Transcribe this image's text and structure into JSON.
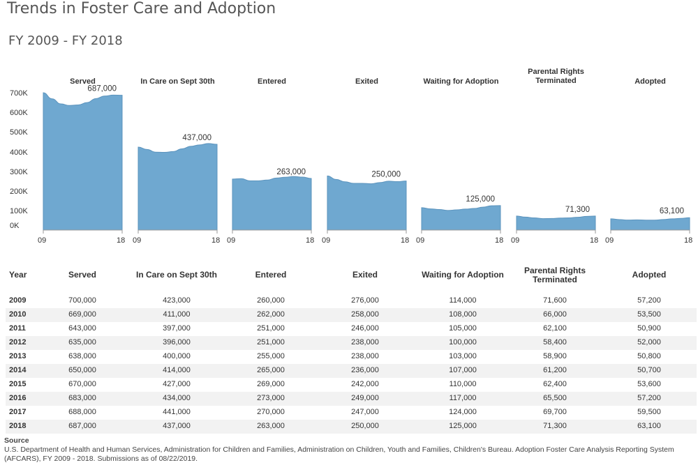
{
  "title": "Trends in Foster Care and Adoption",
  "subtitle": "FY 2009 - FY 2018",
  "chart_data": {
    "type": "area",
    "x_tick_labels": [
      "09",
      "18"
    ],
    "y_tick_labels": [
      "700K",
      "600K",
      "500K",
      "400K",
      "300K",
      "200K",
      "100K",
      "0K"
    ],
    "ylim": [
      0,
      700000
    ],
    "color": "#6fa8d0",
    "x": [
      2009,
      2010,
      2011,
      2012,
      2013,
      2014,
      2015,
      2016,
      2017,
      2018
    ],
    "series": [
      {
        "name": "Served",
        "label_value": "687,000",
        "values": [
          700000,
          669000,
          643000,
          635000,
          638000,
          650000,
          670000,
          683000,
          688000,
          687000
        ]
      },
      {
        "name": "In Care on Sept 30th",
        "label_value": "437,000",
        "values": [
          423000,
          411000,
          397000,
          396000,
          400000,
          414000,
          427000,
          434000,
          441000,
          437000
        ]
      },
      {
        "name": "Entered",
        "label_value": "263,000",
        "values": [
          260000,
          262000,
          251000,
          251000,
          255000,
          265000,
          269000,
          273000,
          270000,
          263000
        ]
      },
      {
        "name": "Exited",
        "label_value": "250,000",
        "values": [
          276000,
          258000,
          246000,
          238000,
          238000,
          236000,
          242000,
          249000,
          247000,
          250000
        ]
      },
      {
        "name": "Waiting for Adoption",
        "label_value": "125,000",
        "values": [
          114000,
          108000,
          105000,
          100000,
          103000,
          107000,
          110000,
          117000,
          124000,
          125000
        ]
      },
      {
        "name": "Parental Rights Terminated",
        "label_value": "71,300",
        "values": [
          71600,
          66000,
          62100,
          58400,
          58900,
          61200,
          62400,
          65500,
          69700,
          71300
        ]
      },
      {
        "name": "Adopted",
        "label_value": "63,100",
        "values": [
          57200,
          53500,
          50900,
          52000,
          50800,
          50700,
          53600,
          57200,
          59500,
          63100
        ]
      }
    ]
  },
  "table": {
    "year_header": "Year",
    "columns": [
      "Served",
      "In Care on Sept 30th",
      "Entered",
      "Exited",
      "Waiting for Adoption",
      "Parental Rights Terminated",
      "Adopted"
    ],
    "rows": [
      {
        "year": "2009",
        "cells": [
          "700,000",
          "423,000",
          "260,000",
          "276,000",
          "114,000",
          "71,600",
          "57,200"
        ]
      },
      {
        "year": "2010",
        "cells": [
          "669,000",
          "411,000",
          "262,000",
          "258,000",
          "108,000",
          "66,000",
          "53,500"
        ]
      },
      {
        "year": "2011",
        "cells": [
          "643,000",
          "397,000",
          "251,000",
          "246,000",
          "105,000",
          "62,100",
          "50,900"
        ]
      },
      {
        "year": "2012",
        "cells": [
          "635,000",
          "396,000",
          "251,000",
          "238,000",
          "100,000",
          "58,400",
          "52,000"
        ]
      },
      {
        "year": "2013",
        "cells": [
          "638,000",
          "400,000",
          "255,000",
          "238,000",
          "103,000",
          "58,900",
          "50,800"
        ]
      },
      {
        "year": "2014",
        "cells": [
          "650,000",
          "414,000",
          "265,000",
          "236,000",
          "107,000",
          "61,200",
          "50,700"
        ]
      },
      {
        "year": "2015",
        "cells": [
          "670,000",
          "427,000",
          "269,000",
          "242,000",
          "110,000",
          "62,400",
          "53,600"
        ]
      },
      {
        "year": "2016",
        "cells": [
          "683,000",
          "434,000",
          "273,000",
          "249,000",
          "117,000",
          "65,500",
          "57,200"
        ]
      },
      {
        "year": "2017",
        "cells": [
          "688,000",
          "441,000",
          "270,000",
          "247,000",
          "124,000",
          "69,700",
          "59,500"
        ]
      },
      {
        "year": "2018",
        "cells": [
          "687,000",
          "437,000",
          "263,000",
          "250,000",
          "125,000",
          "71,300",
          "63,100"
        ]
      }
    ]
  },
  "source": {
    "label": "Source",
    "text": "U.S. Department of Health and Human Services, Administration for Children and Families, Administration on Children, Youth and Families, Children's Bureau. Adoption Foster Care Analysis Reporting System (AFCARS), FY 2009 - 2018. Submissions as of 08/22/2019."
  }
}
